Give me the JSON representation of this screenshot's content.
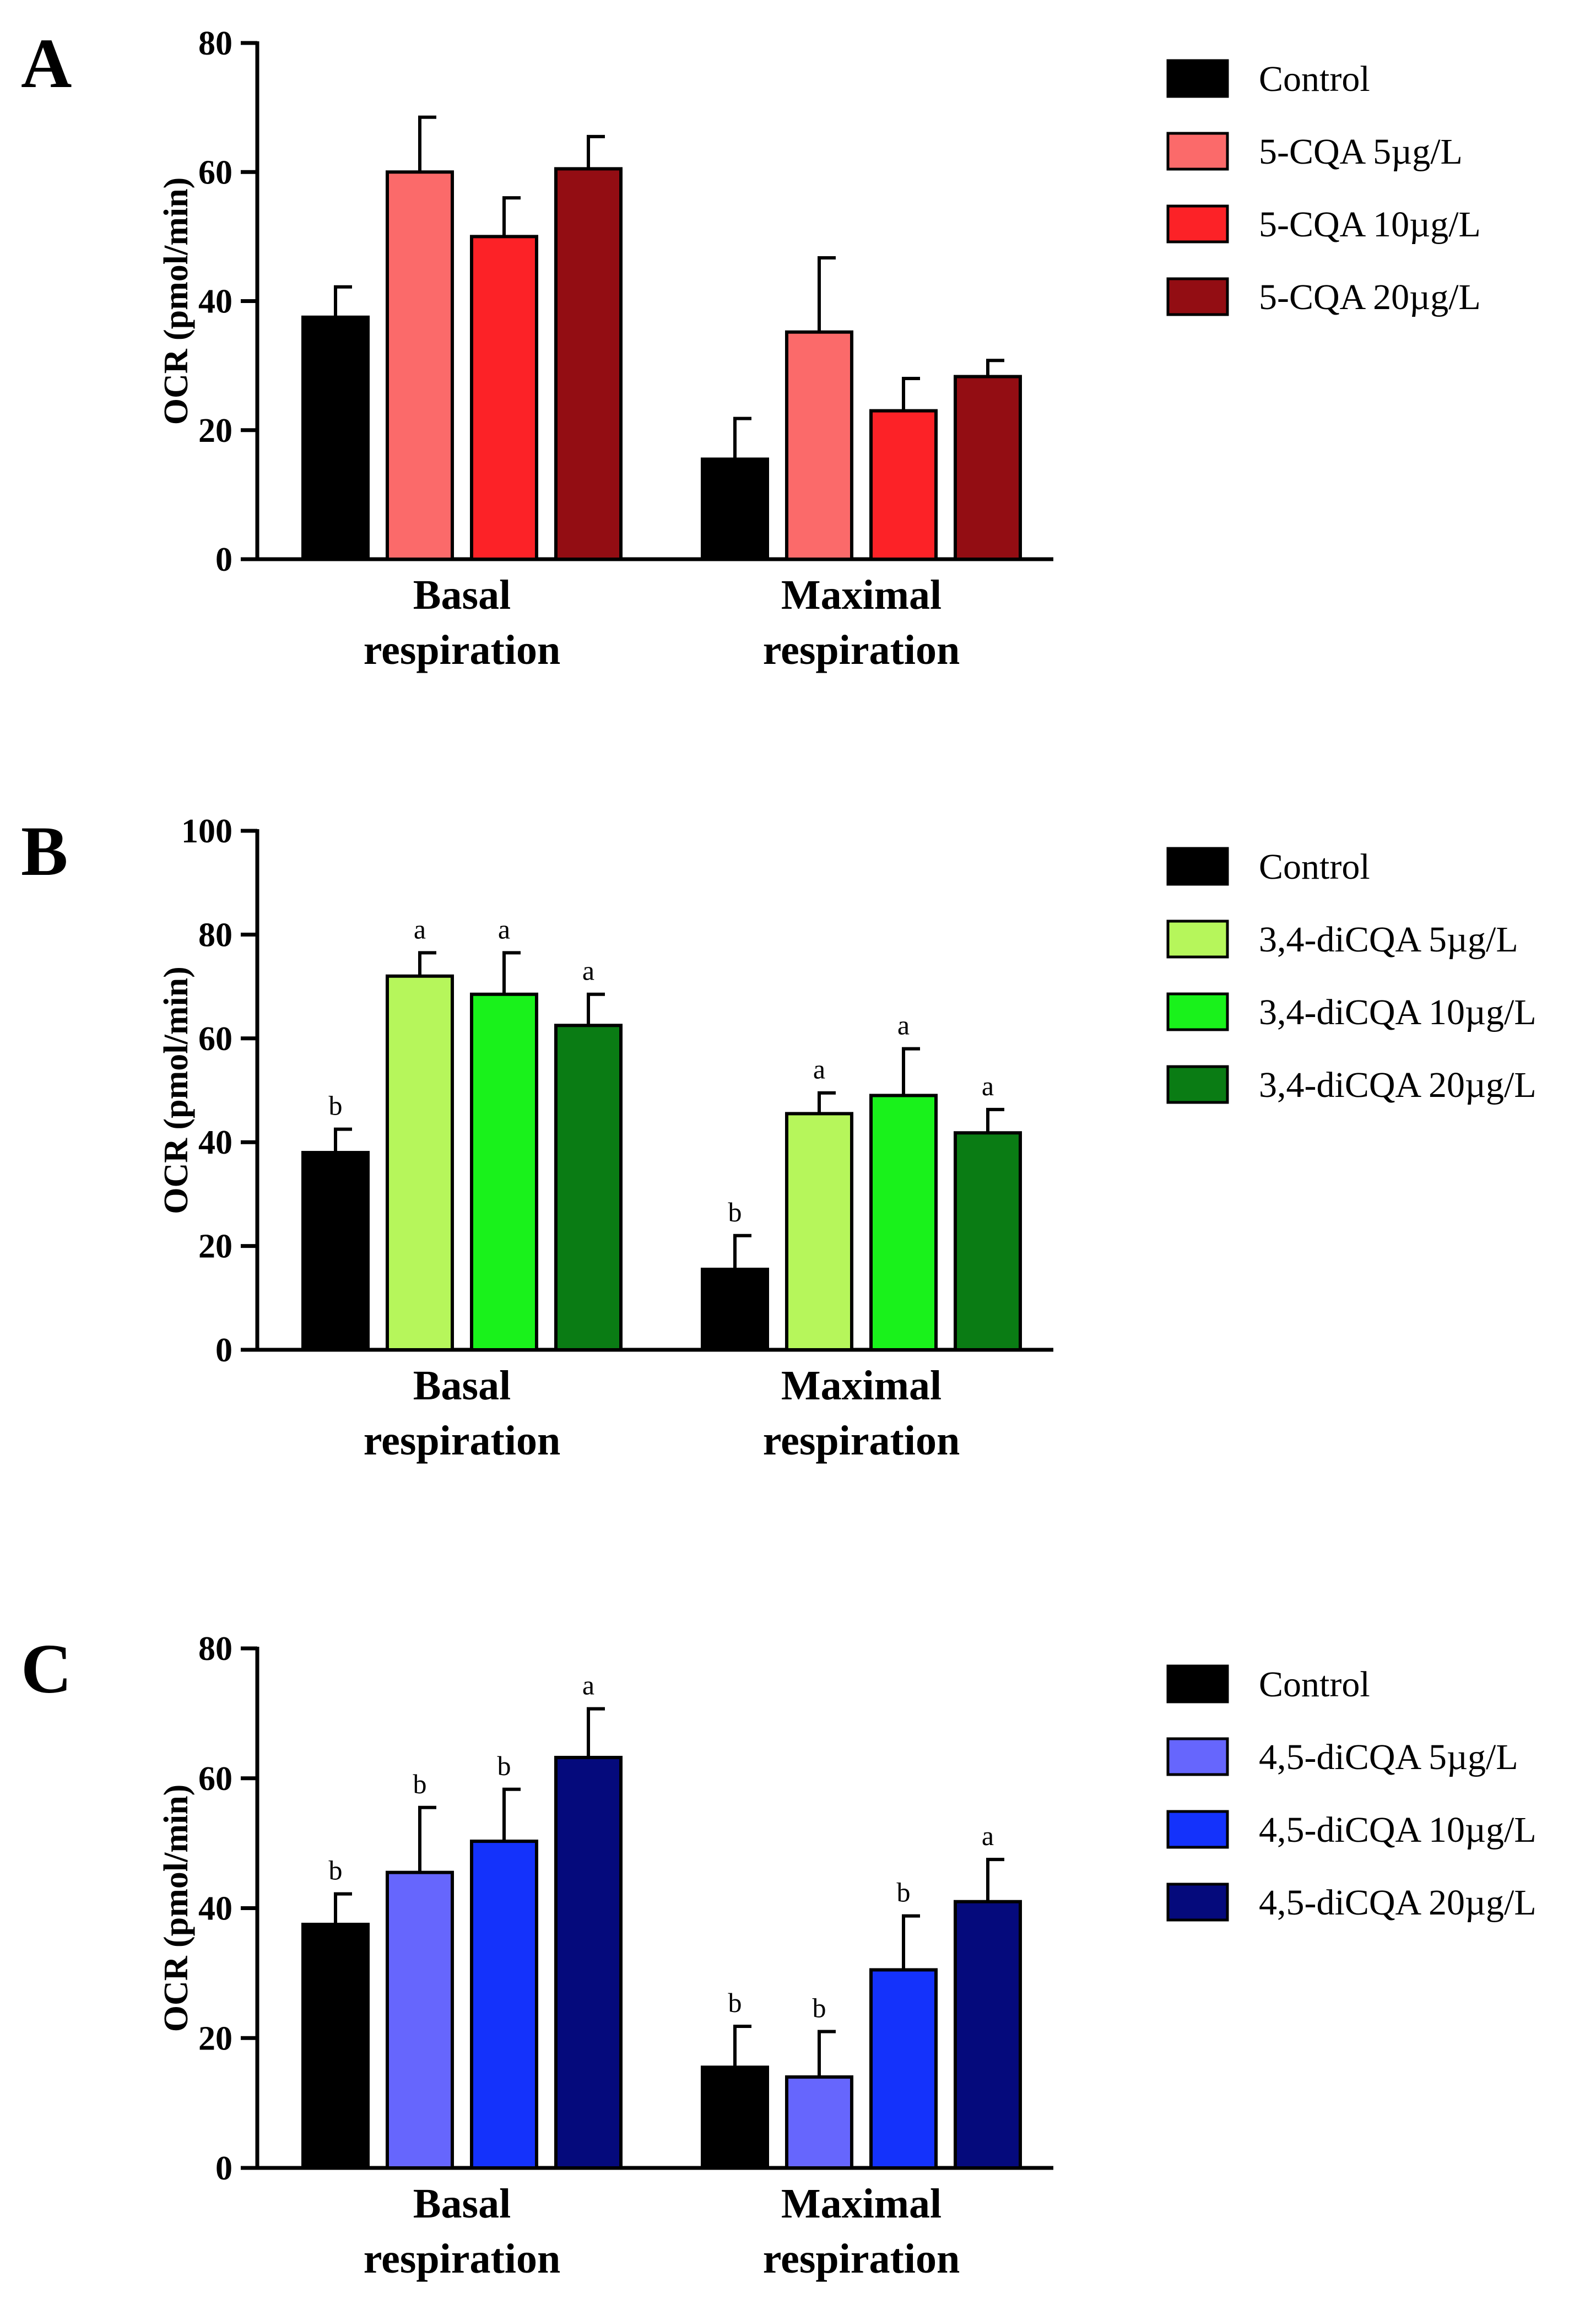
{
  "chart_data": [
    {
      "panel": "A",
      "type": "bar",
      "ylabel": "OCR (pmol/min)",
      "ylim": [
        0,
        80
      ],
      "yticks": [
        0,
        20,
        40,
        60,
        80
      ],
      "categories": [
        "Basal\nrespiration",
        "Maximal\nrespiration"
      ],
      "series": [
        {
          "name": "Control",
          "color": "#000000",
          "values": [
            37.5,
            15.5
          ],
          "errors": [
            4.7,
            6.3
          ],
          "labels": [
            "",
            ""
          ]
        },
        {
          "name": "5-CQA 5µg/L",
          "color": "#fb6a6a",
          "values": [
            60,
            35.2
          ],
          "errors": [
            8.5,
            11.5
          ],
          "labels": [
            "",
            ""
          ]
        },
        {
          "name": "5-CQA 10µg/L",
          "color": "#fc2227",
          "values": [
            50,
            23
          ],
          "errors": [
            6,
            5
          ],
          "labels": [
            "",
            ""
          ]
        },
        {
          "name": "5-CQA 20µg/L",
          "color": "#930d13",
          "values": [
            60.5,
            28.3
          ],
          "errors": [
            5,
            2.5
          ],
          "labels": [
            "",
            ""
          ]
        }
      ]
    },
    {
      "panel": "B",
      "type": "bar",
      "ylabel": "OCR (pmol/min)",
      "ylim": [
        0,
        100
      ],
      "yticks": [
        0,
        20,
        40,
        60,
        80,
        100
      ],
      "categories": [
        "Basal\nrespiration",
        "Maximal\nrespiration"
      ],
      "series": [
        {
          "name": "Control",
          "color": "#000000",
          "values": [
            38,
            15.5
          ],
          "errors": [
            4.5,
            6.5
          ],
          "labels": [
            "b",
            "b"
          ]
        },
        {
          "name": "3,4-diCQA 5µg/L",
          "color": "#b6f65b",
          "values": [
            72,
            45.5
          ],
          "errors": [
            4.5,
            4
          ],
          "labels": [
            "a",
            "a"
          ]
        },
        {
          "name": "3,4-diCQA 10µg/L",
          "color": "#19f21b",
          "values": [
            68.5,
            49
          ],
          "errors": [
            8,
            9
          ],
          "labels": [
            "a",
            "a"
          ]
        },
        {
          "name": "3,4-diCQA 20µg/L",
          "color": "#0a7c14",
          "values": [
            62.5,
            41.8
          ],
          "errors": [
            6,
            4.5
          ],
          "labels": [
            "a",
            "a"
          ]
        }
      ]
    },
    {
      "panel": "C",
      "type": "bar",
      "ylabel": "OCR (pmol/min)",
      "ylim": [
        0,
        80
      ],
      "yticks": [
        0,
        20,
        40,
        60,
        80
      ],
      "categories": [
        "Basal\nrespiration",
        "Maximal\nrespiration"
      ],
      "series": [
        {
          "name": "Control",
          "color": "#000000",
          "values": [
            37.5,
            15.5
          ],
          "errors": [
            4.7,
            6.3
          ],
          "labels": [
            "b",
            "b"
          ]
        },
        {
          "name": "4,5-diCQA 5µg/L",
          "color": "#6666fd",
          "values": [
            45.5,
            14
          ],
          "errors": [
            10,
            7
          ],
          "labels": [
            "b",
            "b"
          ]
        },
        {
          "name": "4,5-diCQA 10µg/L",
          "color": "#1432fb",
          "values": [
            50.3,
            30.5
          ],
          "errors": [
            8,
            8.3
          ],
          "labels": [
            "b",
            "b"
          ]
        },
        {
          "name": "4,5-diCQA 20µg/L",
          "color": "#050a7c",
          "values": [
            63.2,
            41
          ],
          "errors": [
            7.5,
            6.5
          ],
          "labels": [
            "a",
            "a"
          ]
        }
      ]
    }
  ]
}
